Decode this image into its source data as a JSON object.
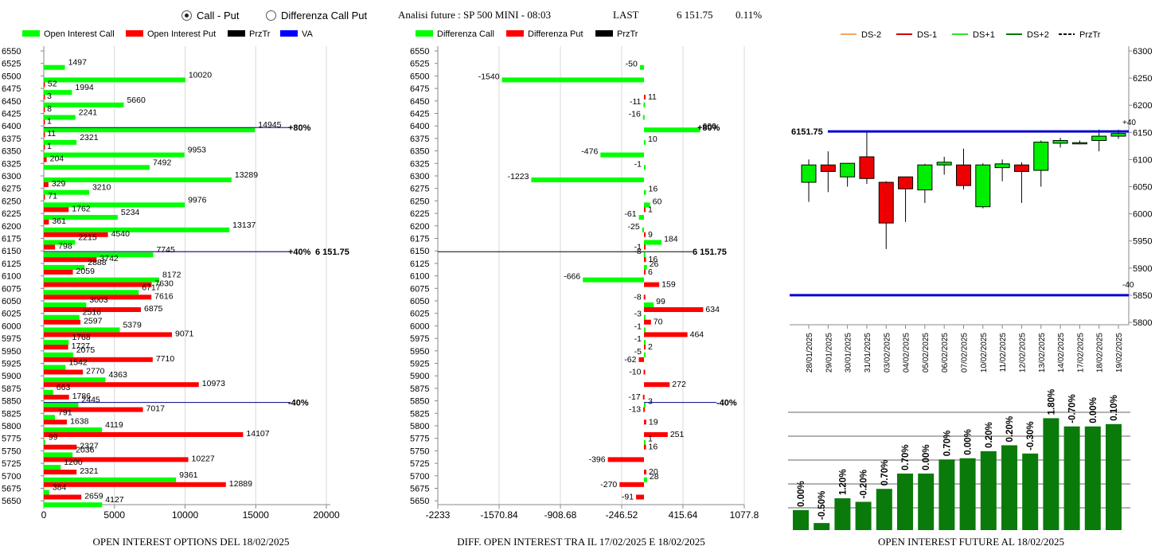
{
  "header": {
    "radio_options": [
      {
        "label": "Call - Put",
        "selected": true
      },
      {
        "label": "Differenza Call Put",
        "selected": false
      }
    ],
    "analysis_title": "Analisi future : SP 500 MINI - 08:03",
    "last_label": "LAST",
    "last_value": "6 151.75",
    "last_change": "0.11%"
  },
  "colors": {
    "call": "#00ff00",
    "put": "#ff0000",
    "prztr": "#000000",
    "va": "#0000ff",
    "ds_minus2": "#f4a460",
    "ds_minus1": "#cc0000",
    "ds_plus1": "#33dd33",
    "ds_plus2": "#007700",
    "bar_green": "#0a7a0a"
  },
  "strikes": [
    6550,
    6525,
    6500,
    6475,
    6450,
    6425,
    6400,
    6375,
    6350,
    6325,
    6300,
    6275,
    6250,
    6225,
    6200,
    6175,
    6150,
    6125,
    6100,
    6075,
    6050,
    6025,
    6000,
    5975,
    5950,
    5925,
    5900,
    5875,
    5850,
    5825,
    5800,
    5775,
    5750,
    5725,
    5700,
    5675,
    5650
  ],
  "chart_data": [
    {
      "type": "bar",
      "title": "OPEN INTEREST OPTIONS DEL 18/02/2025",
      "orientation": "horizontal",
      "legend": [
        "Open Interest Call",
        "Open Interest Put",
        "PrzTr",
        "VA"
      ],
      "legend_position": "top",
      "categories": [
        6550,
        6525,
        6500,
        6475,
        6450,
        6425,
        6400,
        6375,
        6350,
        6325,
        6300,
        6275,
        6250,
        6225,
        6200,
        6175,
        6150,
        6125,
        6100,
        6075,
        6050,
        6025,
        6000,
        5975,
        5950,
        5925,
        5900,
        5875,
        5850,
        5825,
        5800,
        5775,
        5750,
        5725,
        5700,
        5675,
        5650
      ],
      "series": [
        {
          "name": "Open Interest Call",
          "values": [
            0,
            1497,
            10020,
            1994,
            5660,
            2241,
            14945,
            2321,
            9953,
            7492,
            13289,
            3210,
            9976,
            5234,
            13137,
            2215,
            7745,
            2888,
            8172,
            6717,
            3003,
            2516,
            5379,
            1768,
            2075,
            1542,
            4363,
            663,
            2445,
            791,
            4119,
            99,
            2036,
            1200,
            9361,
            384,
            4127
          ]
        },
        {
          "name": "Open Interest Put",
          "values": [
            0,
            0,
            52,
            3,
            8,
            1,
            11,
            1,
            204,
            0,
            329,
            71,
            1762,
            361,
            4540,
            798,
            3742,
            2059,
            7630,
            7616,
            6875,
            2597,
            9071,
            1727,
            7710,
            2770,
            10973,
            1786,
            7017,
            1638,
            14107,
            2327,
            10227,
            2321,
            12889,
            2659,
            0
          ]
        }
      ],
      "xticks": [
        "0",
        "5000",
        "10000",
        "15000",
        "20000"
      ],
      "xlim": [
        0,
        20000
      ],
      "annotations": [
        {
          "strike": 6400,
          "text": "+80%"
        },
        {
          "strike": 6150,
          "text": "+40%"
        },
        {
          "strike": 6150,
          "text": "6 151.75"
        },
        {
          "strike": 5850,
          "text": "-40%"
        }
      ]
    },
    {
      "type": "bar",
      "title": "DIFF. OPEN INTEREST TRA IL 17/02/2025 E 18/02/2025",
      "orientation": "horizontal",
      "legend": [
        "Differenza Call",
        "Differenza Put",
        "PrzTr"
      ],
      "legend_position": "top",
      "categories": [
        6550,
        6525,
        6500,
        6475,
        6450,
        6425,
        6400,
        6375,
        6350,
        6325,
        6300,
        6275,
        6250,
        6225,
        6200,
        6175,
        6150,
        6125,
        6100,
        6075,
        6050,
        6025,
        6000,
        5975,
        5950,
        5925,
        5900,
        5875,
        5850,
        5825,
        5800,
        5775,
        5750,
        5725,
        5700,
        5675,
        5650
      ],
      "series": [
        {
          "name": "Differenza Call",
          "values": [
            null,
            -50,
            -1540,
            null,
            -11,
            -16,
            600,
            10,
            -476,
            -1,
            -1223,
            16,
            60,
            -61,
            -25,
            184,
            -8,
            26,
            -666,
            null,
            99,
            -3,
            -1,
            -1,
            -5,
            null,
            null,
            null,
            3,
            null,
            null,
            1,
            null,
            null,
            28,
            null,
            null
          ]
        },
        {
          "name": "Differenza Put",
          "values": [
            null,
            null,
            null,
            11,
            null,
            null,
            null,
            null,
            null,
            null,
            null,
            null,
            1,
            null,
            9,
            -1,
            16,
            6,
            159,
            -8,
            634,
            70,
            464,
            2,
            -62,
            -10,
            272,
            -17,
            -13,
            19,
            251,
            16,
            -396,
            20,
            -270,
            -91,
            null
          ]
        }
      ],
      "xticks": [
        "-2233",
        "-1570.84",
        "-908.68",
        "-246.52",
        "415.64",
        "1077.8"
      ],
      "xlim": [
        -2233,
        1077.8
      ],
      "annotations": [
        {
          "strike": 6400,
          "text": "+80%"
        },
        {
          "strike": 6150,
          "text": "6 151.75"
        },
        {
          "strike": 5850,
          "text": "-40%"
        }
      ]
    },
    {
      "type": "candlestick",
      "legend": [
        "DS-2",
        "DS-1",
        "DS+1",
        "DS+2",
        "PrzTr"
      ],
      "legend_position": "top",
      "categories": [
        "28/01/2025",
        "29/01/2025",
        "30/01/2025",
        "31/01/2025",
        "03/02/2025",
        "04/02/2025",
        "05/02/2025",
        "06/02/2025",
        "07/02/2025",
        "10/02/2025",
        "11/02/2025",
        "12/02/2025",
        "13/02/2025",
        "14/02/2025",
        "17/02/2025",
        "18/02/2025",
        "19/02/2025"
      ],
      "ohlc": [
        {
          "open": 6058,
          "high": 6100,
          "low": 6022,
          "close": 6090
        },
        {
          "open": 6090,
          "high": 6115,
          "low": 6040,
          "close": 6078
        },
        {
          "open": 6068,
          "high": 6092,
          "low": 6050,
          "close": 6093
        },
        {
          "open": 6105,
          "high": 6150,
          "low": 6055,
          "close": 6065
        },
        {
          "open": 6058,
          "high": 6060,
          "low": 5935,
          "close": 5983
        },
        {
          "open": 6068,
          "high": 6068,
          "low": 5985,
          "close": 6046
        },
        {
          "open": 6044,
          "high": 6092,
          "low": 6020,
          "close": 6090
        },
        {
          "open": 6090,
          "high": 6105,
          "low": 6072,
          "close": 6095
        },
        {
          "open": 6090,
          "high": 6120,
          "low": 6045,
          "close": 6052
        },
        {
          "open": 6013,
          "high": 6093,
          "low": 6010,
          "close": 6090
        },
        {
          "open": 6085,
          "high": 6100,
          "low": 6060,
          "close": 6092
        },
        {
          "open": 6090,
          "high": 6095,
          "low": 6020,
          "close": 6078
        },
        {
          "open": 6080,
          "high": 6135,
          "low": 6050,
          "close": 6132
        },
        {
          "open": 6130,
          "high": 6140,
          "low": 6122,
          "close": 6135
        },
        {
          "open": 6130,
          "high": 6135,
          "low": 6128,
          "close": 6131
        },
        {
          "open": 6135,
          "high": 6155,
          "low": 6115,
          "close": 6143
        },
        {
          "open": 6143,
          "high": 6155,
          "low": 6138,
          "close": 6148
        }
      ],
      "yticks": [
        "6300",
        "6250",
        "6200",
        "6150",
        "6100",
        "6050",
        "6000",
        "5950",
        "5900",
        "5850",
        "5800"
      ],
      "ylim": [
        5800,
        6300
      ],
      "lines": [
        {
          "name": "PrzTr",
          "value": 6151.75,
          "label": "6151.75"
        },
        {
          "name": "VA",
          "value": 5850
        }
      ],
      "annotations": [
        "+40",
        "-40"
      ]
    },
    {
      "type": "bar",
      "title": "OPEN INTEREST FUTURE AL 18/02/2025",
      "labels": [
        "0.00%",
        "-0.50%",
        "1.20%",
        "-0.20%",
        "0.70%",
        "0.70%",
        "0.00%",
        "0.70%",
        "0.00%",
        "0.20%",
        "0.20%",
        "-0.30%",
        "1.80%",
        "-0.70%",
        "0.00%",
        "0.10%"
      ],
      "values": [
        0.17,
        0.06,
        0.27,
        0.24,
        0.35,
        0.48,
        0.48,
        0.6,
        0.61,
        0.67,
        0.72,
        0.65,
        0.95,
        0.88,
        0.88,
        0.9
      ]
    }
  ]
}
